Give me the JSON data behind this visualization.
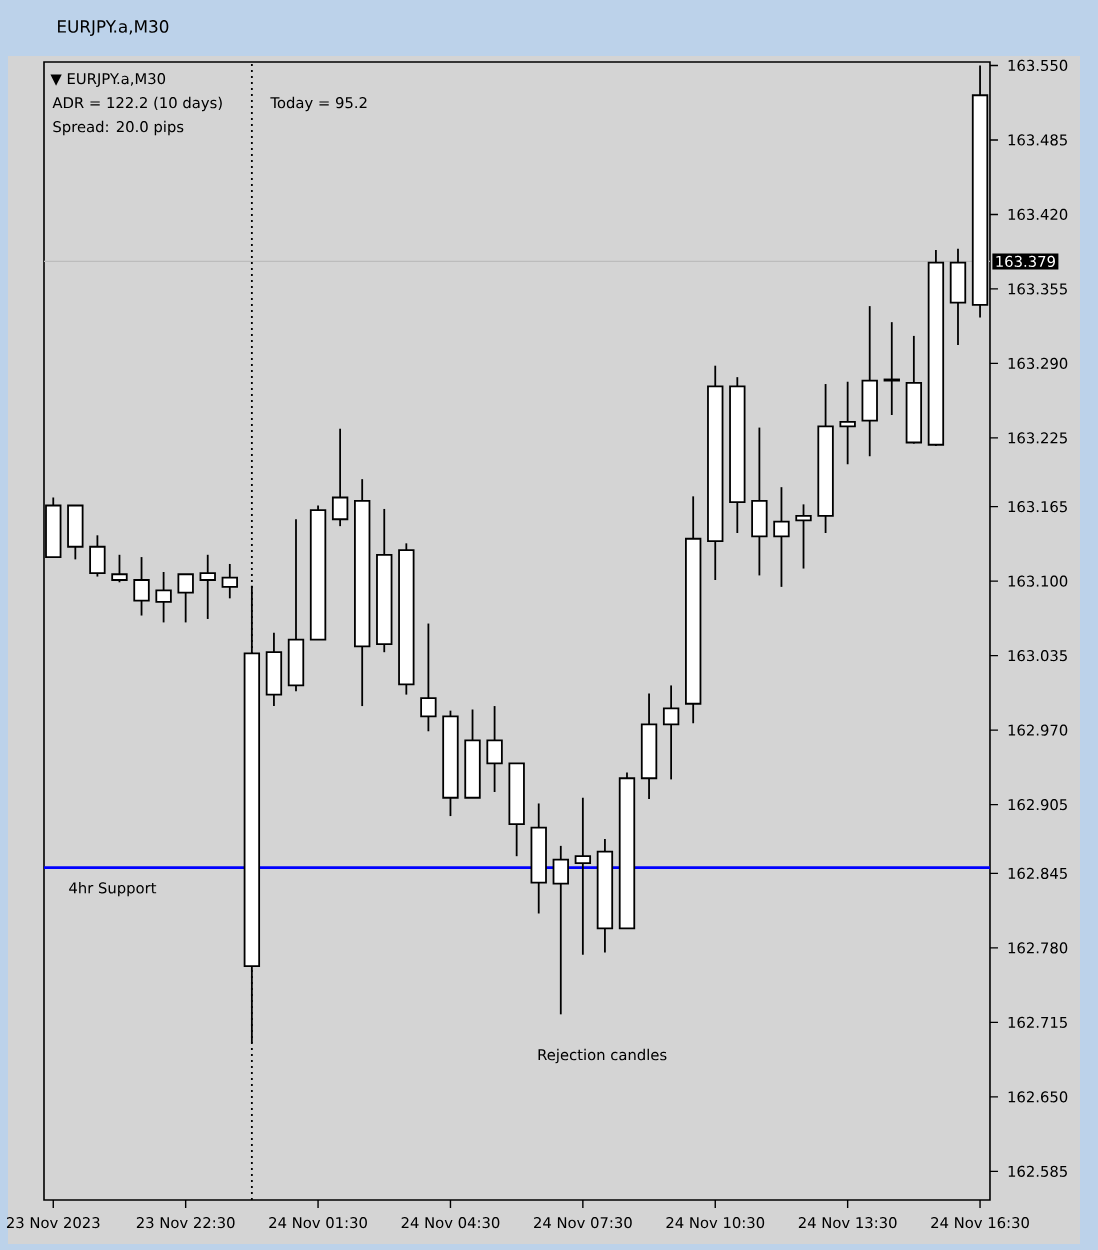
{
  "chart_data": {
    "type": "candlestick",
    "title": "EURJPY.a,M30",
    "subtitle": "▼ EURJPY.a,M30",
    "categories": [
      "23 Nov 2023",
      null,
      null,
      null,
      null,
      null,
      "23 Nov 22:30",
      null,
      null,
      null,
      null,
      null,
      "24 Nov 01:30",
      null,
      null,
      null,
      null,
      null,
      "24 Nov 04:30",
      null,
      null,
      null,
      null,
      null,
      "24 Nov 07:30",
      null,
      null,
      null,
      null,
      null,
      "24 Nov 10:30",
      null,
      null,
      null,
      null,
      null,
      "24 Nov 13:30",
      null,
      null,
      null,
      null,
      null,
      "24 Nov 16:30"
    ],
    "ohlc": [
      [
        163.121,
        163.173,
        163.121,
        163.166
      ],
      [
        163.13,
        163.166,
        163.119,
        163.166
      ],
      [
        163.107,
        163.14,
        163.104,
        163.13
      ],
      [
        163.101,
        163.123,
        163.099,
        163.106
      ],
      [
        163.083,
        163.121,
        163.07,
        163.101
      ],
      [
        163.082,
        163.108,
        163.064,
        163.092
      ],
      [
        163.09,
        163.106,
        163.064,
        163.106
      ],
      [
        163.101,
        163.123,
        163.067,
        163.107
      ],
      [
        163.095,
        163.115,
        163.085,
        163.103
      ],
      [
        162.764,
        163.096,
        162.697,
        163.037
      ],
      [
        163.001,
        163.055,
        162.991,
        163.038
      ],
      [
        163.009,
        163.154,
        163.004,
        163.049
      ],
      [
        163.049,
        163.166,
        163.049,
        163.162
      ],
      [
        163.154,
        163.233,
        163.148,
        163.173
      ],
      [
        163.043,
        163.189,
        162.991,
        163.17
      ],
      [
        163.045,
        163.163,
        163.038,
        163.123
      ],
      [
        163.01,
        163.133,
        163.001,
        163.127
      ],
      [
        162.982,
        163.063,
        162.969,
        162.998
      ],
      [
        162.911,
        162.987,
        162.895,
        162.982
      ],
      [
        162.911,
        162.988,
        162.911,
        162.961
      ],
      [
        162.941,
        162.991,
        162.916,
        162.961
      ],
      [
        162.888,
        162.941,
        162.86,
        162.941
      ],
      [
        162.837,
        162.906,
        162.81,
        162.885
      ],
      [
        162.836,
        162.869,
        162.722,
        162.857
      ],
      [
        162.854,
        162.911,
        162.774,
        162.86
      ],
      [
        162.797,
        162.875,
        162.776,
        162.864
      ],
      [
        162.797,
        162.933,
        162.797,
        162.928
      ],
      [
        162.928,
        163.002,
        162.91,
        162.975
      ],
      [
        162.975,
        163.009,
        162.927,
        162.989
      ],
      [
        162.993,
        163.174,
        162.976,
        163.137
      ],
      [
        163.135,
        163.288,
        163.101,
        163.27
      ],
      [
        163.169,
        163.278,
        163.142,
        163.27
      ],
      [
        163.139,
        163.234,
        163.105,
        163.17
      ],
      [
        163.139,
        163.182,
        163.095,
        163.152
      ],
      [
        163.153,
        163.167,
        163.111,
        163.157
      ],
      [
        163.157,
        163.272,
        163.142,
        163.235
      ],
      [
        163.235,
        163.274,
        163.202,
        163.239
      ],
      [
        163.24,
        163.34,
        163.209,
        163.275
      ],
      [
        163.275,
        163.326,
        163.245,
        163.276
      ],
      [
        163.221,
        163.314,
        163.22,
        163.273
      ],
      [
        163.219,
        163.389,
        163.218,
        163.378
      ],
      [
        163.343,
        163.39,
        163.306,
        163.378
      ],
      [
        163.341,
        163.55,
        163.33,
        163.524
      ]
    ],
    "color": "#ffffff",
    "ylim": [
      162.56,
      163.553
    ],
    "yticks": [
      {
        "value": 163.55,
        "label": "163.550"
      },
      163.485,
      {
        "value": 163.42,
        "label": "163.420"
      },
      163.355,
      {
        "value": 163.29,
        "label": "163.290"
      },
      163.225,
      163.165,
      {
        "value": 163.1,
        "label": "163.100"
      },
      163.035,
      {
        "value": 162.97,
        "label": "162.970"
      },
      162.905,
      162.845,
      {
        "value": 162.78,
        "label": "162.780"
      },
      162.715,
      {
        "value": 162.65,
        "label": "162.650"
      },
      162.585
    ],
    "ref_lines": [
      {
        "axis": "y",
        "value": 162.85,
        "label": "4hr Support",
        "color": "#0000ff"
      },
      {
        "axis": "y",
        "value": 163.379,
        "label": "163.379",
        "color": "#bcbcbc"
      }
    ],
    "annotations": [
      "ADR = 122.2 (10 days)",
      "Spread: 20.0 pips",
      "Today = 95.2",
      "Rejection candles"
    ]
  }
}
